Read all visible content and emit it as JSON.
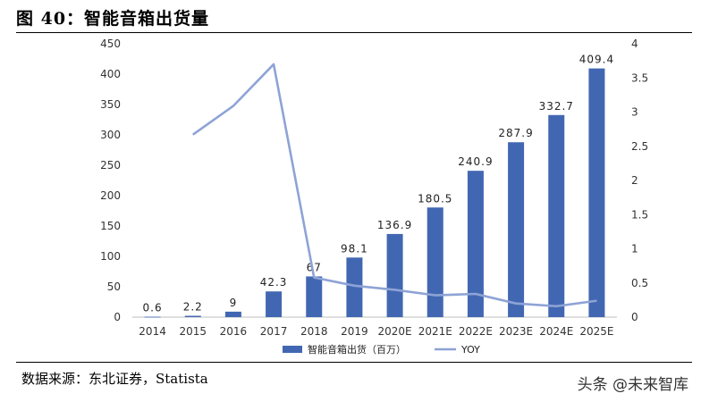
{
  "figure": {
    "title": "图 40：智能音箱出货量",
    "source": "数据来源：东北证券，Statista",
    "watermark": "头条 @未来智库"
  },
  "chart_data": {
    "type": "bar",
    "categories": [
      "2014",
      "2015",
      "2016",
      "2017",
      "2018",
      "2019",
      "2020E",
      "2021E",
      "2022E",
      "2023E",
      "2024E",
      "2025E"
    ],
    "series": [
      {
        "name": "智能音箱出货（百万）",
        "type": "bar",
        "axis": "left",
        "values": [
          0.6,
          2.2,
          9,
          42.3,
          67,
          98.1,
          136.9,
          180.5,
          240.9,
          287.9,
          332.7,
          409.4
        ],
        "labels": [
          "0.6",
          "2.2",
          "9",
          "42.3",
          "67",
          "98.1",
          "136.9",
          "180.5",
          "240.9",
          "287.9",
          "332.7",
          "409.4"
        ],
        "color": "#4267B2"
      },
      {
        "name": "YOY",
        "type": "line",
        "axis": "right",
        "values": [
          null,
          2.67,
          3.09,
          3.7,
          0.58,
          0.46,
          0.4,
          0.32,
          0.34,
          0.2,
          0.16,
          0.24
        ],
        "color": "#8EA3D6"
      }
    ],
    "y_left": {
      "min": 0,
      "max": 450,
      "ticks": [
        "0",
        "50",
        "100",
        "150",
        "200",
        "250",
        "300",
        "350",
        "400",
        "450"
      ]
    },
    "y_right": {
      "min": 0,
      "max": 4,
      "ticks": [
        "0",
        "0.5",
        "1",
        "1.5",
        "2",
        "2.5",
        "3",
        "3.5",
        "4"
      ]
    },
    "legend": "bottom-center",
    "grid": true
  }
}
